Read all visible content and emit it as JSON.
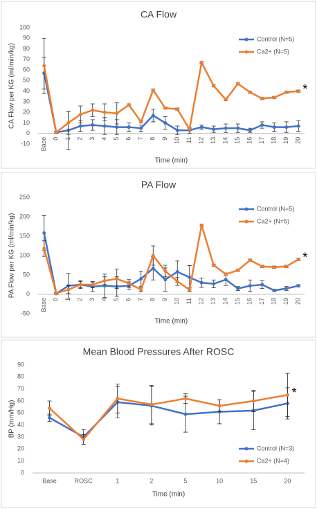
{
  "chart_data": [
    {
      "type": "line",
      "title": "CA Flow",
      "x_label": "Time (min)",
      "y_label": "CA Flow per KG (ml/min/kg)",
      "categories": [
        "Base",
        "0",
        "1",
        "2",
        "3",
        "4",
        "5",
        "6",
        "7",
        "8",
        "9",
        "10",
        "11",
        "12",
        "13",
        "14",
        "15",
        "16",
        "17",
        "18",
        "19",
        "20"
      ],
      "series": [
        {
          "name": "Control (N=5)",
          "color": "#4472c4",
          "values": [
            57,
            1,
            3,
            7,
            8,
            7,
            6,
            6,
            5,
            17,
            10,
            3,
            3,
            6,
            4,
            5,
            5,
            3,
            8,
            6,
            6,
            7
          ],
          "errors": [
            15,
            1,
            18,
            5,
            5,
            8,
            7,
            4,
            3,
            6,
            6,
            4,
            3,
            2,
            3,
            4,
            4,
            2,
            3,
            4,
            5,
            5
          ]
        },
        {
          "name": "Ca2+ (N=5)",
          "color": "#ed7d31",
          "values": [
            64,
            1,
            10,
            18,
            22,
            20,
            19,
            27,
            11,
            41,
            24,
            23,
            4,
            67,
            45,
            32,
            47,
            39,
            33,
            34,
            39,
            40
          ],
          "errors": [
            26,
            1,
            11,
            8,
            6,
            8,
            10,
            1,
            1,
            1,
            1,
            1,
            1,
            1,
            1,
            1,
            1,
            1,
            1,
            1,
            1,
            1
          ]
        }
      ],
      "annotation": "*",
      "ylim": [
        -10,
        100
      ],
      "yticks": [
        -10,
        0,
        10,
        20,
        30,
        40,
        50,
        60,
        70,
        80,
        90,
        100
      ],
      "legend_position": "upper right"
    },
    {
      "type": "line",
      "title": "PA Flow",
      "x_label": "Time (min)",
      "y_label": "PA Flow per KG (ml/min/kg)",
      "categories": [
        "Base",
        "0",
        "1",
        "2",
        "3",
        "4",
        "5",
        "6",
        "7",
        "8",
        "9",
        "10",
        "11",
        "12",
        "13",
        "14",
        "15",
        "16",
        "17",
        "18",
        "19",
        "20"
      ],
      "series": [
        {
          "name": "Control (N=5)",
          "color": "#4472c4",
          "values": [
            158,
            2,
            22,
            25,
            20,
            22,
            20,
            22,
            40,
            67,
            38,
            58,
            44,
            30,
            27,
            38,
            15,
            22,
            25,
            10,
            15,
            22
          ],
          "errors": [
            45,
            2,
            32,
            10,
            12,
            30,
            25,
            10,
            20,
            30,
            30,
            28,
            30,
            12,
            10,
            15,
            5,
            15,
            10,
            3,
            5,
            3
          ]
        },
        {
          "name": "Ca2+ (N=5)",
          "color": "#ed7d31",
          "values": [
            118,
            3,
            12,
            25,
            25,
            35,
            40,
            28,
            12,
            100,
            60,
            33,
            12,
            178,
            75,
            52,
            62,
            88,
            72,
            70,
            72,
            90
          ],
          "errors": [
            20,
            2,
            10,
            8,
            8,
            10,
            25,
            10,
            5,
            25,
            15,
            10,
            5,
            3,
            3,
            3,
            3,
            3,
            3,
            3,
            3,
            3
          ]
        }
      ],
      "annotation": "*",
      "ylim": [
        -50,
        250
      ],
      "yticks": [
        -50,
        0,
        50,
        100,
        150,
        200,
        250
      ],
      "legend_position": "upper right"
    },
    {
      "type": "line",
      "title": "Mean Blood Pressures After ROSC",
      "x_label": "Time (min)",
      "y_label": "BP (mm/Hg)",
      "categories": [
        "Base",
        "ROSC",
        "1",
        "2",
        "5",
        "10",
        "15",
        "20"
      ],
      "series": [
        {
          "name": "Control (N=3)",
          "color": "#4472c4",
          "values": [
            46,
            30,
            59,
            56,
            49,
            51,
            52,
            58
          ],
          "errors": [
            3,
            6,
            13,
            16,
            15,
            10,
            16,
            13
          ]
        },
        {
          "name": "Ca2+ (N=4)",
          "color": "#ed7d31",
          "values": [
            54,
            28,
            62,
            57,
            62,
            56,
            60,
            65
          ],
          "errors": [
            6,
            4,
            12,
            16,
            4,
            5,
            9,
            18
          ]
        }
      ],
      "annotation": "*",
      "ylim": [
        0,
        90
      ],
      "yticks": [
        0,
        10,
        20,
        30,
        40,
        50,
        60,
        70,
        80,
        90
      ],
      "legend_position": "lower right"
    }
  ]
}
